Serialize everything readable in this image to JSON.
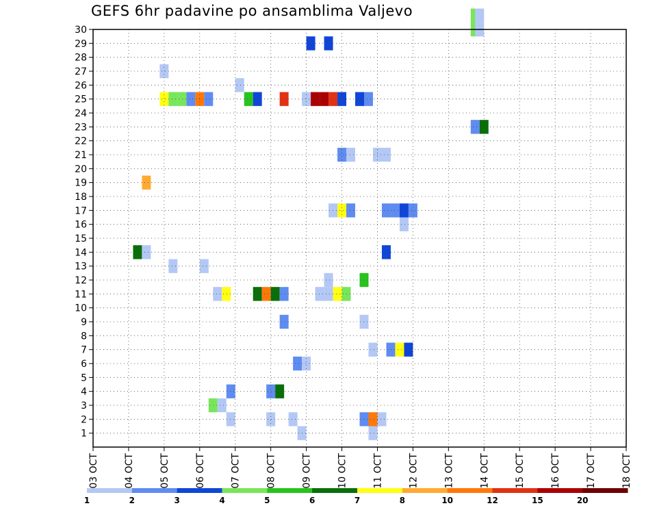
{
  "chart_data": {
    "type": "heatmap",
    "title": "GEFS 6hr padavine po ansamblima Valjevo",
    "xlabel": "",
    "ylabel": "",
    "x_ticks": [
      "03 OCT",
      "04 OCT",
      "05 OCT",
      "06 OCT",
      "07 OCT",
      "08 OCT",
      "09 OCT",
      "10 OCT",
      "11 OCT",
      "12 OCT",
      "13 OCT",
      "14 OCT",
      "15 OCT",
      "16 OCT",
      "17 OCT",
      "18 OCT"
    ],
    "y_ticks": [
      "1",
      "2",
      "3",
      "4",
      "5",
      "6",
      "7",
      "8",
      "9",
      "10",
      "11",
      "12",
      "13",
      "14",
      "15",
      "16",
      "17",
      "18",
      "19",
      "20",
      "21",
      "22",
      "23",
      "24",
      "25",
      "26",
      "27",
      "28",
      "29",
      "30"
    ],
    "grid": true,
    "colorbar": {
      "colors": [
        "#b4c8f5",
        "#5f8cf0",
        "#1046d7",
        "#78e65a",
        "#28c31e",
        "#0a6e0a",
        "#ffff14",
        "#ffaa32",
        "#ff780a",
        "#e13214",
        "#aa0000",
        "#6e0000"
      ],
      "labels": [
        "1",
        "2",
        "3",
        "4",
        "5",
        "6",
        "7",
        "8",
        "10",
        "12",
        "15",
        "20"
      ]
    },
    "cells": [
      {
        "x": 10.75,
        "y": 30,
        "c": 3
      },
      {
        "x": 10.75,
        "y": 31,
        "c": 3
      },
      {
        "x": 10.875,
        "y": 30,
        "c": 0
      },
      {
        "x": 10.875,
        "y": 31,
        "c": 0
      },
      {
        "x": 6.125,
        "y": 29,
        "c": 2
      },
      {
        "x": 6.625,
        "y": 29,
        "c": 2
      },
      {
        "x": 2.0,
        "y": 27,
        "c": 0
      },
      {
        "x": 4.125,
        "y": 26,
        "c": 0
      },
      {
        "x": 2.0,
        "y": 25,
        "c": 6
      },
      {
        "x": 2.25,
        "y": 25,
        "c": 3
      },
      {
        "x": 2.5,
        "y": 25,
        "c": 3
      },
      {
        "x": 2.75,
        "y": 25,
        "c": 1
      },
      {
        "x": 3.0,
        "y": 25,
        "c": 8
      },
      {
        "x": 3.25,
        "y": 25,
        "c": 1
      },
      {
        "x": 4.375,
        "y": 25,
        "c": 4
      },
      {
        "x": 4.625,
        "y": 25,
        "c": 2
      },
      {
        "x": 5.375,
        "y": 25,
        "c": 9
      },
      {
        "x": 6.0,
        "y": 25,
        "c": 0
      },
      {
        "x": 6.25,
        "y": 25,
        "c": 10
      },
      {
        "x": 6.5,
        "y": 25,
        "c": 10
      },
      {
        "x": 6.75,
        "y": 25,
        "c": 9
      },
      {
        "x": 7.0,
        "y": 25,
        "c": 2
      },
      {
        "x": 7.5,
        "y": 25,
        "c": 2
      },
      {
        "x": 7.75,
        "y": 25,
        "c": 1
      },
      {
        "x": 10.75,
        "y": 23,
        "c": 1
      },
      {
        "x": 11.0,
        "y": 23,
        "c": 5
      },
      {
        "x": 7.0,
        "y": 21,
        "c": 1
      },
      {
        "x": 7.25,
        "y": 21,
        "c": 0
      },
      {
        "x": 8.0,
        "y": 21,
        "c": 0
      },
      {
        "x": 8.25,
        "y": 21,
        "c": 0
      },
      {
        "x": 1.5,
        "y": 19,
        "c": 7
      },
      {
        "x": 6.75,
        "y": 17,
        "c": 0
      },
      {
        "x": 7.0,
        "y": 17,
        "c": 6
      },
      {
        "x": 7.25,
        "y": 17,
        "c": 1
      },
      {
        "x": 8.25,
        "y": 17,
        "c": 1
      },
      {
        "x": 8.5,
        "y": 17,
        "c": 1
      },
      {
        "x": 8.75,
        "y": 17,
        "c": 2
      },
      {
        "x": 9.0,
        "y": 17,
        "c": 1
      },
      {
        "x": 8.75,
        "y": 16,
        "c": 0
      },
      {
        "x": 1.25,
        "y": 14,
        "c": 5
      },
      {
        "x": 1.5,
        "y": 14,
        "c": 0
      },
      {
        "x": 8.25,
        "y": 14,
        "c": 2
      },
      {
        "x": 2.25,
        "y": 13,
        "c": 0
      },
      {
        "x": 3.125,
        "y": 13,
        "c": 0
      },
      {
        "x": 6.625,
        "y": 12,
        "c": 0
      },
      {
        "x": 7.625,
        "y": 12,
        "c": 4
      },
      {
        "x": 3.5,
        "y": 11,
        "c": 0
      },
      {
        "x": 3.75,
        "y": 11,
        "c": 6
      },
      {
        "x": 4.625,
        "y": 11,
        "c": 5
      },
      {
        "x": 4.875,
        "y": 11,
        "c": 8
      },
      {
        "x": 5.125,
        "y": 11,
        "c": 5
      },
      {
        "x": 5.375,
        "y": 11,
        "c": 1
      },
      {
        "x": 6.375,
        "y": 11,
        "c": 0
      },
      {
        "x": 6.625,
        "y": 11,
        "c": 0
      },
      {
        "x": 6.875,
        "y": 11,
        "c": 6
      },
      {
        "x": 7.125,
        "y": 11,
        "c": 3
      },
      {
        "x": 7.625,
        "y": 9,
        "c": 0
      },
      {
        "x": 5.375,
        "y": 9,
        "c": 1
      },
      {
        "x": 7.875,
        "y": 7,
        "c": 0
      },
      {
        "x": 8.375,
        "y": 7,
        "c": 1
      },
      {
        "x": 8.625,
        "y": 7,
        "c": 6
      },
      {
        "x": 8.875,
        "y": 7,
        "c": 2
      },
      {
        "x": 5.75,
        "y": 6,
        "c": 1
      },
      {
        "x": 6.0,
        "y": 6,
        "c": 0
      },
      {
        "x": 3.875,
        "y": 4,
        "c": 1
      },
      {
        "x": 5.0,
        "y": 4,
        "c": 1
      },
      {
        "x": 5.25,
        "y": 4,
        "c": 5
      },
      {
        "x": 3.375,
        "y": 3,
        "c": 3
      },
      {
        "x": 3.625,
        "y": 3,
        "c": 0
      },
      {
        "x": 3.875,
        "y": 2,
        "c": 0
      },
      {
        "x": 5.0,
        "y": 2,
        "c": 0
      },
      {
        "x": 5.625,
        "y": 2,
        "c": 0
      },
      {
        "x": 7.625,
        "y": 2,
        "c": 1
      },
      {
        "x": 7.875,
        "y": 2,
        "c": 8
      },
      {
        "x": 8.125,
        "y": 2,
        "c": 0
      },
      {
        "x": 5.875,
        "y": 1,
        "c": 0
      },
      {
        "x": 7.875,
        "y": 1,
        "c": 0
      }
    ]
  }
}
